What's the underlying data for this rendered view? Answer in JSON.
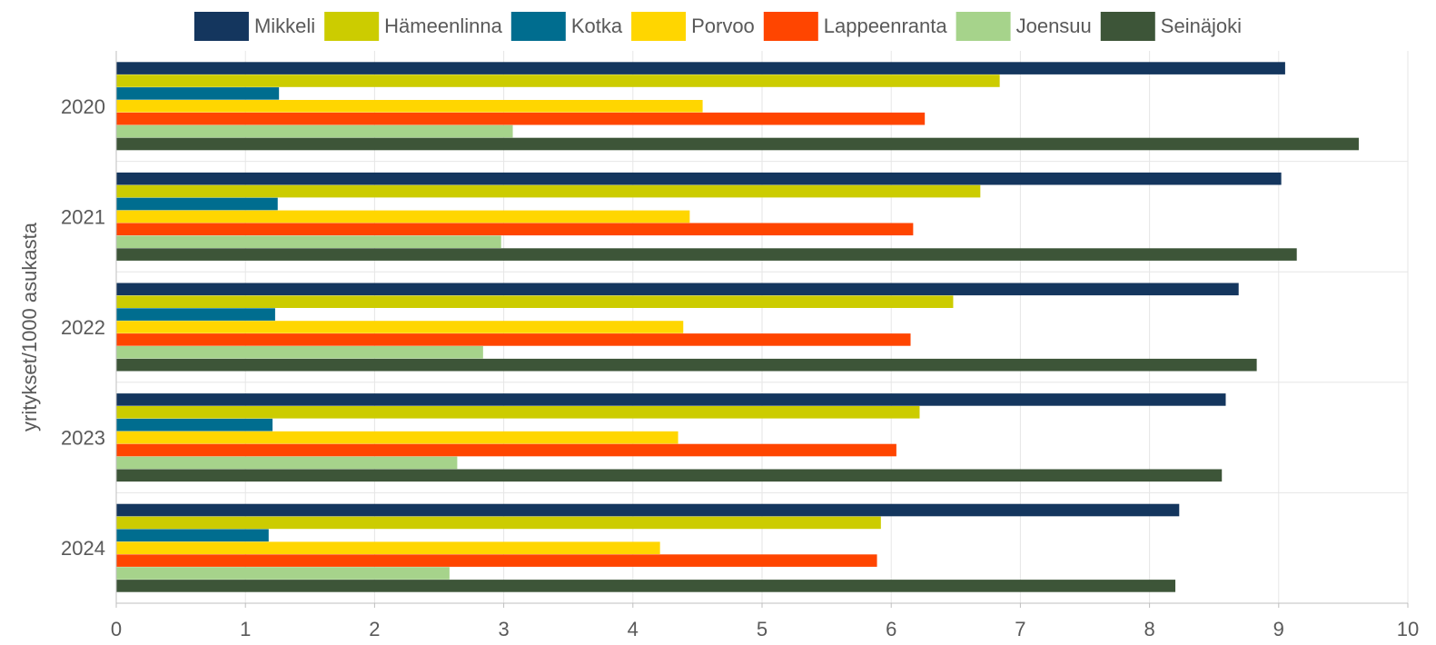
{
  "chart_data": {
    "type": "bar",
    "orientation": "horizontal",
    "title": "",
    "xlabel": "",
    "ylabel": "yritykset/1000 asukasta",
    "xlim": [
      0,
      10
    ],
    "x_ticks": [
      0,
      1,
      2,
      3,
      4,
      5,
      6,
      7,
      8,
      9,
      10
    ],
    "grid": true,
    "legend_position": "top",
    "categories": [
      "2020",
      "2021",
      "2022",
      "2023",
      "2024"
    ],
    "series": [
      {
        "name": "Mikkeli",
        "color": "#14365e",
        "values": [
          9.05,
          9.02,
          8.69,
          8.59,
          8.23
        ]
      },
      {
        "name": "Hämeenlinna",
        "color": "#cccc00",
        "values": [
          6.84,
          6.69,
          6.48,
          6.22,
          5.92
        ]
      },
      {
        "name": "Kotka",
        "color": "#006d8f",
        "values": [
          1.26,
          1.25,
          1.23,
          1.21,
          1.18
        ]
      },
      {
        "name": "Porvoo",
        "color": "#ffd600",
        "values": [
          4.54,
          4.44,
          4.39,
          4.35,
          4.21
        ]
      },
      {
        "name": "Lappeenranta",
        "color": "#ff4500",
        "values": [
          6.26,
          6.17,
          6.15,
          6.04,
          5.89
        ]
      },
      {
        "name": "Joensuu",
        "color": "#a6d38b",
        "values": [
          3.07,
          2.98,
          2.84,
          2.64,
          2.58
        ]
      },
      {
        "name": "Seinäjoki",
        "color": "#3d5538",
        "values": [
          9.62,
          9.14,
          8.83,
          8.56,
          8.2
        ]
      }
    ]
  }
}
